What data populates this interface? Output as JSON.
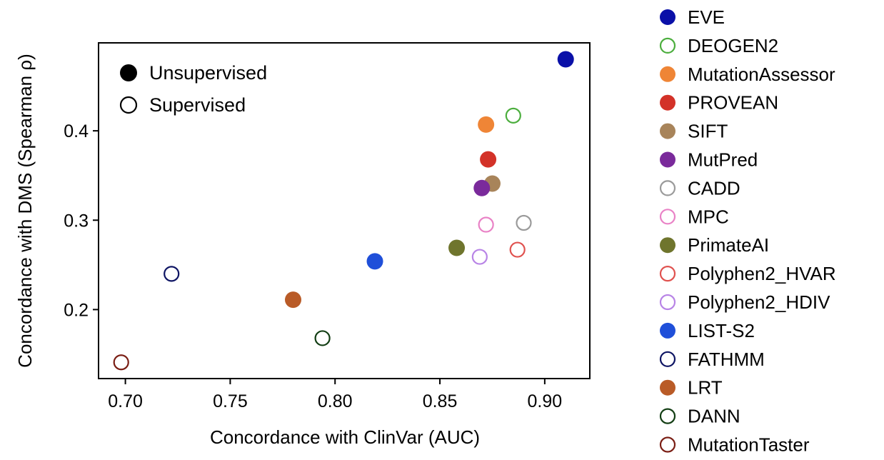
{
  "chart_data": {
    "type": "scatter",
    "xlabel": "Concordance with ClinVar (AUC)",
    "ylabel": "Concordance with DMS (Spearman ρ)",
    "xlim": [
      0.6872,
      0.9215
    ],
    "ylim": [
      0.1228,
      0.4984
    ],
    "xticks": [
      0.7,
      0.75,
      0.8,
      0.85,
      0.9
    ],
    "xtick_labels": [
      "0.70",
      "0.75",
      "0.80",
      "0.85",
      "0.90"
    ],
    "yticks": [
      0.2,
      0.3,
      0.4
    ],
    "ytick_labels": [
      "0.2",
      "0.3",
      "0.4"
    ],
    "style_legend": {
      "location": "upper-left",
      "entries": [
        {
          "label": "Unsupervised",
          "filled": true
        },
        {
          "label": "Supervised",
          "filled": false
        }
      ]
    },
    "series": [
      {
        "name": "EVE",
        "x": 0.91,
        "y": 0.48,
        "color": "#0a10a8",
        "filled": true
      },
      {
        "name": "DEOGEN2",
        "x": 0.885,
        "y": 0.417,
        "color": "#4cae3e",
        "filled": false
      },
      {
        "name": "MutationAssessor",
        "x": 0.872,
        "y": 0.407,
        "color": "#ef8536",
        "filled": true
      },
      {
        "name": "PROVEAN",
        "x": 0.873,
        "y": 0.368,
        "color": "#d33228",
        "filled": true
      },
      {
        "name": "SIFT",
        "x": 0.875,
        "y": 0.341,
        "color": "#a8845a",
        "filled": true
      },
      {
        "name": "MutPred",
        "x": 0.87,
        "y": 0.336,
        "color": "#7a2a9b",
        "filled": true
      },
      {
        "name": "CADD",
        "x": 0.89,
        "y": 0.297,
        "color": "#9a9a9a",
        "filled": false
      },
      {
        "name": "MPC",
        "x": 0.872,
        "y": 0.295,
        "color": "#e982c6",
        "filled": false
      },
      {
        "name": "PrimateAI",
        "x": 0.858,
        "y": 0.269,
        "color": "#6f752d",
        "filled": true
      },
      {
        "name": "Polyphen2_HVAR",
        "x": 0.887,
        "y": 0.267,
        "color": "#e0524f",
        "filled": false
      },
      {
        "name": "Polyphen2_HDIV",
        "x": 0.869,
        "y": 0.259,
        "color": "#b884e6",
        "filled": false
      },
      {
        "name": "LIST-S2",
        "x": 0.819,
        "y": 0.254,
        "color": "#1f4fd9",
        "filled": true
      },
      {
        "name": "FATHMM",
        "x": 0.722,
        "y": 0.24,
        "color": "#0d1463",
        "filled": false
      },
      {
        "name": "LRT",
        "x": 0.78,
        "y": 0.211,
        "color": "#b95b27",
        "filled": true
      },
      {
        "name": "DANN",
        "x": 0.794,
        "y": 0.168,
        "color": "#123d13",
        "filled": false
      },
      {
        "name": "MutationTaster",
        "x": 0.698,
        "y": 0.141,
        "color": "#7a1e14",
        "filled": false
      }
    ]
  }
}
